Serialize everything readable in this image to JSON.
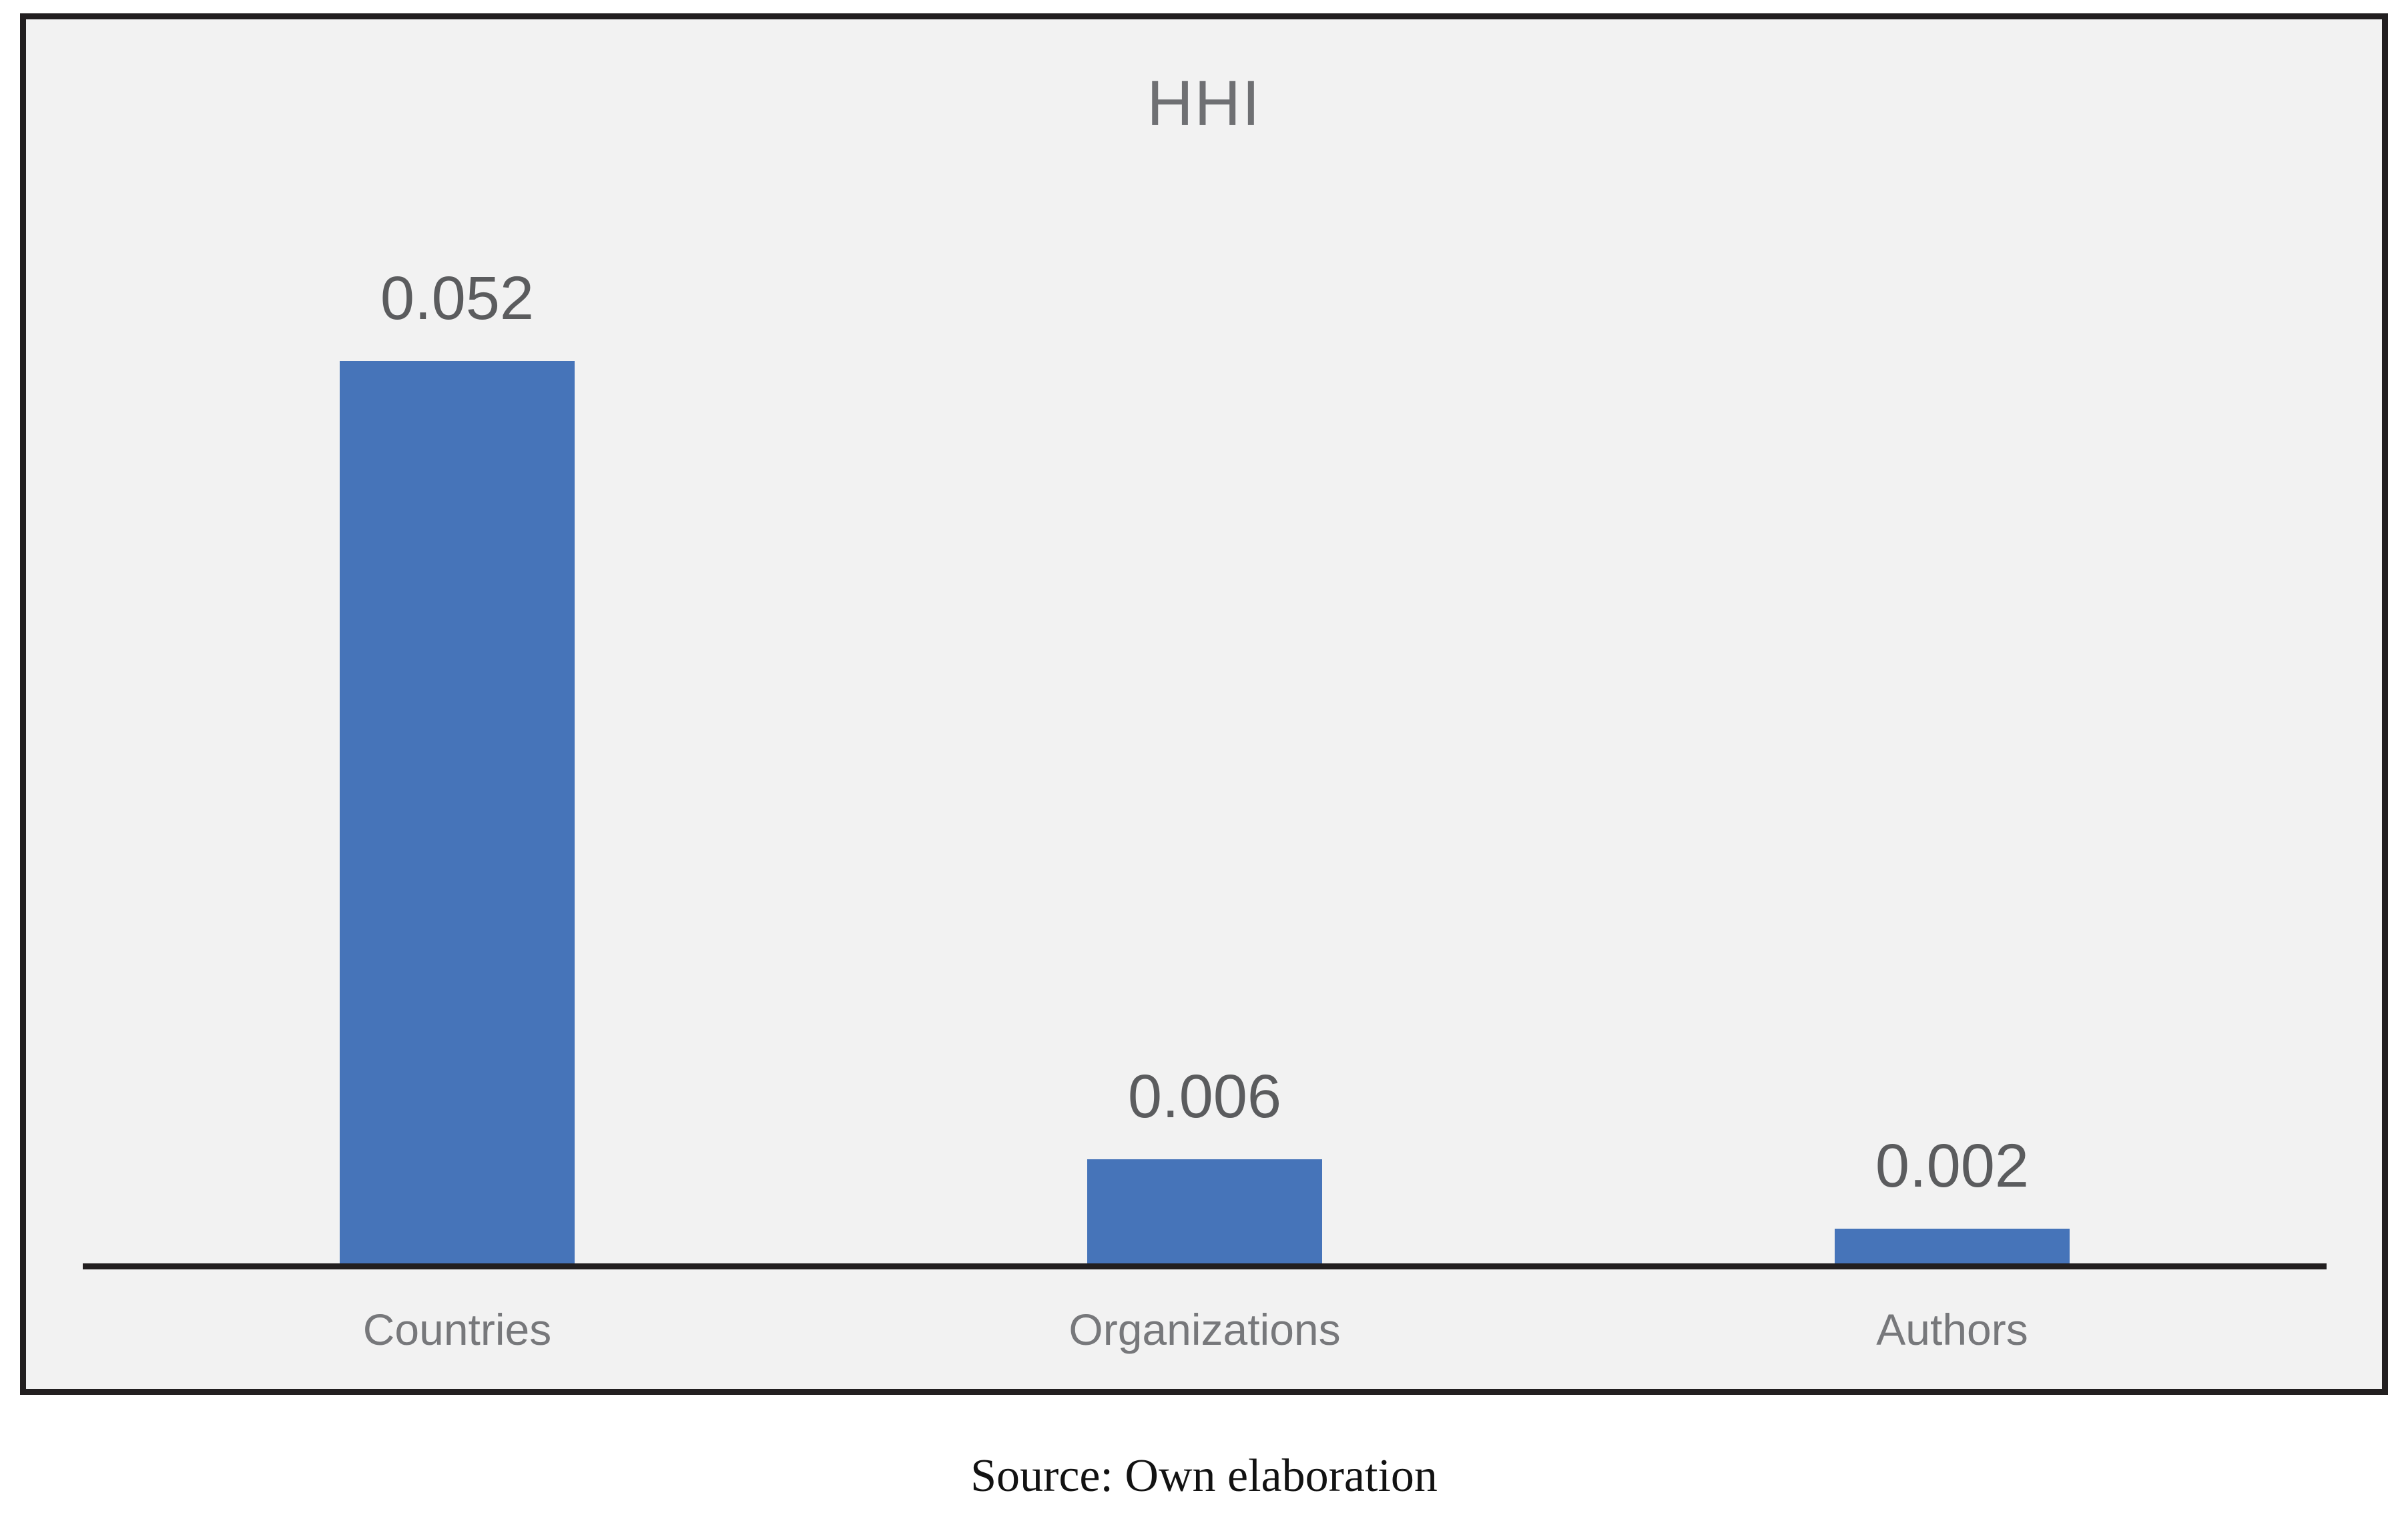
{
  "page": {
    "background": "#ffffff",
    "caption": "Source: Own elaboration"
  },
  "chart_data": {
    "type": "bar",
    "title": "HHI",
    "categories": [
      "Countries",
      "Organizations",
      "Authors"
    ],
    "values": [
      0.052,
      0.006,
      0.002
    ],
    "data_labels": [
      "0.052",
      "0.006",
      "0.002"
    ],
    "xlabel": "",
    "ylabel": "",
    "ylim": [
      0,
      0.052
    ],
    "grid": false,
    "legend": false,
    "y_axis_ticks_visible": false,
    "bar_color": "#4674B9",
    "plot_background": "#f2f2f2",
    "frame_border_color": "#221f20",
    "axis_line_color": "#221f20",
    "title_color": "#6f7073",
    "data_label_color": "#5b5c5e",
    "category_label_color": "#77787b"
  }
}
